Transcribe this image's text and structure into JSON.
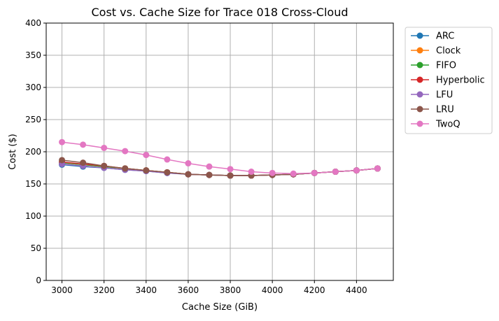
{
  "chart_data": {
    "type": "line",
    "title": "Cost vs. Cache Size for Trace 018 Cross-Cloud",
    "xlabel": "Cache Size (GiB)",
    "ylabel": "Cost ($)",
    "xlim": [
      2925,
      4575
    ],
    "ylim": [
      0,
      400
    ],
    "xticks": [
      "3000",
      "3200",
      "3400",
      "3600",
      "3800",
      "4000",
      "4200",
      "4400"
    ],
    "yticks": [
      "0",
      "50",
      "100",
      "150",
      "200",
      "250",
      "300",
      "350",
      "400"
    ],
    "grid": true,
    "legend_position": "outside-right",
    "x": [
      3000,
      3100,
      3200,
      3300,
      3400,
      3500,
      3600,
      3700,
      3800,
      3900,
      4000,
      4100,
      4200,
      4300,
      4400,
      4500
    ],
    "series": [
      {
        "name": "ARC",
        "color": "#1f77b4",
        "values": [
          180,
          177,
          175,
          172,
          170,
          167,
          165,
          164,
          163,
          163,
          164,
          165,
          167,
          169,
          171,
          174
        ]
      },
      {
        "name": "Clock",
        "color": "#ff7f0e",
        "values": [
          183,
          180,
          177,
          174,
          171,
          168,
          165,
          164,
          163,
          163,
          164,
          165,
          167,
          169,
          171,
          174
        ]
      },
      {
        "name": "FIFO",
        "color": "#2ca02c",
        "values": [
          183,
          180,
          177,
          174,
          171,
          168,
          165,
          164,
          163,
          163,
          164,
          165,
          167,
          169,
          171,
          174
        ]
      },
      {
        "name": "Hyperbolic",
        "color": "#d62728",
        "values": [
          184,
          181,
          178,
          174,
          171,
          168,
          165,
          164,
          163,
          163,
          164,
          165,
          167,
          169,
          171,
          174
        ]
      },
      {
        "name": "LFU",
        "color": "#9467bd",
        "values": [
          181,
          178,
          175,
          172,
          170,
          167,
          165,
          164,
          163,
          163,
          164,
          165,
          167,
          169,
          171,
          174
        ]
      },
      {
        "name": "LRU",
        "color": "#8c564b",
        "values": [
          187,
          183,
          178,
          174,
          171,
          168,
          165,
          164,
          163,
          163,
          164,
          165,
          167,
          169,
          171,
          174
        ]
      },
      {
        "name": "TwoQ",
        "color": "#e377c2",
        "values": [
          215,
          211,
          206,
          201,
          195,
          188,
          182,
          177,
          173,
          169,
          167,
          166,
          167,
          169,
          171,
          174
        ]
      }
    ]
  }
}
